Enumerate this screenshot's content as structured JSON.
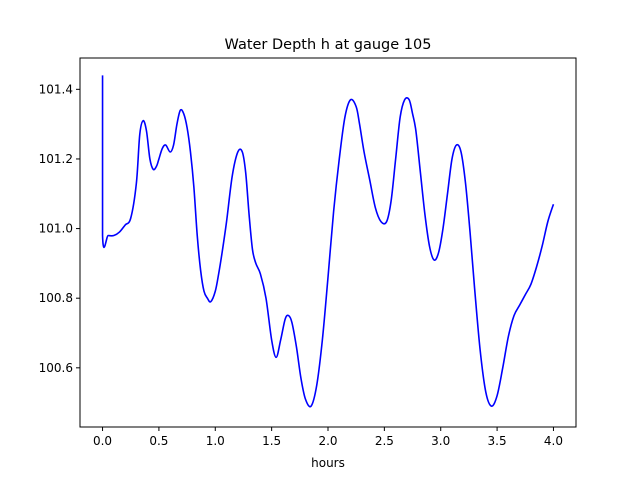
{
  "chart_data": {
    "type": "line",
    "title": "Water Depth h at gauge 105",
    "xlabel": "hours",
    "ylabel": "",
    "xlim": [
      -0.2,
      4.2
    ],
    "ylim": [
      100.43,
      101.49
    ],
    "grid": false,
    "xticks": [
      0.0,
      0.5,
      1.0,
      1.5,
      2.0,
      2.5,
      3.0,
      3.5,
      4.0
    ],
    "xtick_labels": [
      "0.0",
      "0.5",
      "1.0",
      "1.5",
      "2.0",
      "2.5",
      "3.0",
      "3.5",
      "4.0"
    ],
    "yticks": [
      100.6,
      100.8,
      101.0,
      101.2,
      101.4
    ],
    "ytick_labels": [
      "100.6",
      "100.8",
      "101.0",
      "101.2",
      "101.4"
    ],
    "series": [
      {
        "color": "#0000ff",
        "x": [
          0.0,
          0.0,
          0.05,
          0.1,
          0.15,
          0.2,
          0.25,
          0.3,
          0.33,
          0.36,
          0.39,
          0.42,
          0.45,
          0.48,
          0.5,
          0.53,
          0.56,
          0.6,
          0.63,
          0.66,
          0.69,
          0.72,
          0.75,
          0.78,
          0.81,
          0.84,
          0.87,
          0.9,
          0.93,
          0.96,
          1.0,
          1.03,
          1.06,
          1.1,
          1.15,
          1.2,
          1.24,
          1.27,
          1.3,
          1.33,
          1.36,
          1.4,
          1.45,
          1.5,
          1.54,
          1.58,
          1.62,
          1.65,
          1.68,
          1.72,
          1.76,
          1.8,
          1.85,
          1.9,
          1.95,
          2.0,
          2.05,
          2.1,
          2.15,
          2.2,
          2.25,
          2.28,
          2.32,
          2.37,
          2.42,
          2.47,
          2.52,
          2.56,
          2.6,
          2.64,
          2.68,
          2.72,
          2.75,
          2.78,
          2.82,
          2.86,
          2.9,
          2.94,
          2.98,
          3.02,
          3.06,
          3.1,
          3.14,
          3.18,
          3.22,
          3.26,
          3.3,
          3.35,
          3.4,
          3.45,
          3.5,
          3.55,
          3.6,
          3.65,
          3.7,
          3.75,
          3.8,
          3.85,
          3.9,
          3.95,
          4.0
        ],
        "y": [
          101.44,
          100.98,
          100.98,
          100.98,
          100.99,
          101.01,
          101.03,
          101.13,
          101.27,
          101.31,
          101.28,
          101.2,
          101.17,
          101.18,
          101.2,
          101.23,
          101.24,
          101.22,
          101.24,
          101.3,
          101.34,
          101.33,
          101.29,
          101.22,
          101.12,
          100.98,
          100.88,
          100.82,
          100.8,
          100.79,
          100.82,
          100.87,
          100.93,
          101.02,
          101.15,
          101.22,
          101.22,
          101.16,
          101.04,
          100.94,
          100.9,
          100.87,
          100.8,
          100.68,
          100.63,
          100.68,
          100.74,
          100.75,
          100.73,
          100.66,
          100.57,
          100.51,
          100.49,
          100.55,
          100.68,
          100.86,
          101.05,
          101.2,
          101.32,
          101.37,
          101.35,
          101.3,
          101.22,
          101.14,
          101.06,
          101.02,
          101.02,
          101.08,
          101.2,
          101.32,
          101.37,
          101.37,
          101.33,
          101.28,
          101.16,
          101.04,
          100.95,
          100.91,
          100.93,
          101.0,
          101.1,
          101.2,
          101.24,
          101.22,
          101.13,
          100.99,
          100.83,
          100.65,
          100.53,
          100.49,
          100.52,
          100.6,
          100.69,
          100.75,
          100.78,
          100.81,
          100.84,
          100.89,
          100.95,
          101.02,
          101.07
        ]
      }
    ]
  }
}
